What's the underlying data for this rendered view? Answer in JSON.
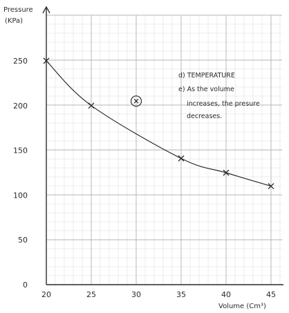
{
  "chart_data": {
    "type": "line",
    "title": "",
    "xlabel": "Volume (Cm³)",
    "ylabel": [
      "Pressure",
      "(KPa)"
    ],
    "xlim": [
      20,
      45
    ],
    "ylim": [
      0,
      250
    ],
    "x_ticks": [
      {
        "value": 20,
        "label": "20"
      },
      {
        "value": 25,
        "label": "25"
      },
      {
        "value": 30,
        "label": "30"
      },
      {
        "value": 35,
        "label": "35"
      },
      {
        "value": 40,
        "label": "40"
      },
      {
        "value": 45,
        "label": "45"
      }
    ],
    "y_ticks": [
      {
        "value": 0,
        "label": "0"
      },
      {
        "value": 50,
        "label": "50"
      },
      {
        "value": 100,
        "label": "100"
      },
      {
        "value": 150,
        "label": "150"
      },
      {
        "value": 200,
        "label": "200"
      },
      {
        "value": 250,
        "label": "250"
      }
    ],
    "grid": true,
    "series": [
      {
        "points": [
          {
            "x": 20,
            "y": 250
          },
          {
            "x": 25,
            "y": 200
          },
          {
            "x": 35,
            "y": 141
          },
          {
            "x": 40,
            "y": 125
          },
          {
            "x": 45,
            "y": 110
          }
        ]
      }
    ],
    "outlier": {
      "x": 30,
      "y": 205
    },
    "annotations": [
      "d) TEMPERATURE",
      "e) As the volume",
      "increases, the presure",
      "decreases."
    ],
    "colors": {
      "ink": "#2a2a2a",
      "grid_minor": "#dedede",
      "grid_major": "#b4b4b4"
    }
  }
}
